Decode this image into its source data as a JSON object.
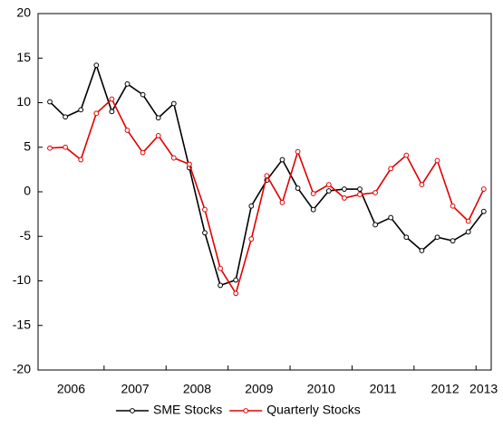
{
  "chart_data": {
    "type": "line",
    "categories": [
      "2006",
      null,
      null,
      null,
      "2007",
      null,
      null,
      null,
      "2008",
      null,
      null,
      null,
      "2009",
      null,
      null,
      null,
      "2010",
      null,
      null,
      null,
      "2011",
      null,
      null,
      null,
      "2012",
      null,
      null,
      null,
      "2013"
    ],
    "series": [
      {
        "name": "SME Stocks",
        "color": "#000000",
        "values": [
          10.1,
          8.4,
          9.2,
          14.2,
          9.0,
          12.1,
          10.9,
          8.3,
          9.9,
          2.7,
          -4.6,
          -10.5,
          -9.9,
          -1.6,
          1.3,
          3.6,
          0.4,
          -2.0,
          0.1,
          0.3,
          0.3,
          -3.7,
          -2.9,
          -5.1,
          -6.6,
          -5.1,
          -5.5,
          -4.5,
          -2.2
        ]
      },
      {
        "name": "Quarterly Stocks",
        "color": "#e00000",
        "values": [
          4.9,
          5.0,
          3.6,
          8.8,
          10.4,
          6.9,
          4.4,
          6.3,
          3.8,
          3.1,
          -2.0,
          -8.6,
          -11.4,
          -5.3,
          1.8,
          -1.2,
          4.5,
          -0.2,
          0.8,
          -0.7,
          -0.3,
          -0.1,
          2.6,
          4.1,
          0.8,
          3.5,
          -1.6,
          -3.3,
          0.3
        ]
      }
    ],
    "ylim": [
      -20,
      20
    ],
    "yticks": [
      -20,
      -15,
      -10,
      -5,
      0,
      5,
      10,
      15,
      20
    ],
    "grid": false,
    "legend": "bottom"
  }
}
